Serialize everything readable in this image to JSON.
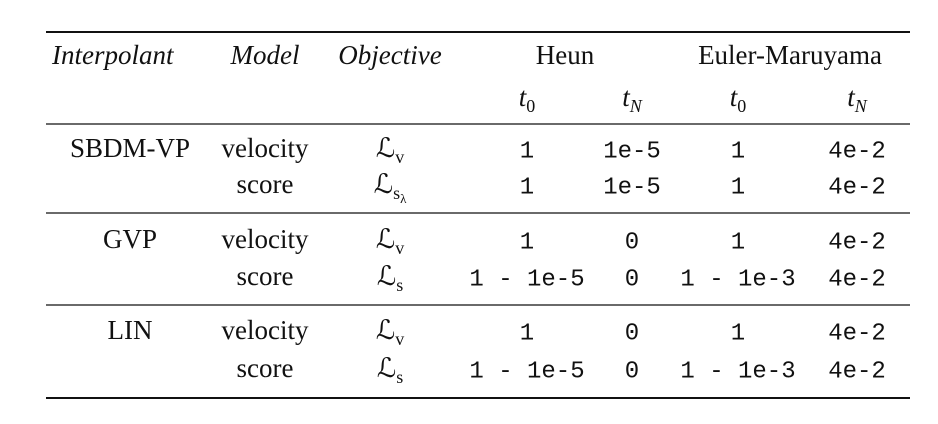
{
  "table": {
    "header": {
      "columns": [
        "Interpolant",
        "Model",
        "Objective"
      ],
      "groups": [
        {
          "name": "Heun",
          "sub": [
            {
              "main": "t",
              "sub": "0"
            },
            {
              "main": "t",
              "sub": "N"
            }
          ]
        },
        {
          "name": "Euler-Maruyama",
          "sub": [
            {
              "main": "t",
              "sub": "0"
            },
            {
              "main": "t",
              "sub": "N"
            }
          ]
        }
      ]
    },
    "sections": [
      {
        "interpolant": "SBDM-VP",
        "rows": [
          {
            "model": "velocity",
            "objective": {
              "main": "ℒ",
              "sub": "v"
            },
            "values": [
              "1",
              "1e-5",
              "1",
              "4e-2"
            ]
          },
          {
            "model": "score",
            "objective": {
              "main": "ℒ",
              "sub": "s",
              "subsub": "λ"
            },
            "values": [
              "1",
              "1e-5",
              "1",
              "4e-2"
            ]
          }
        ]
      },
      {
        "interpolant": "GVP",
        "rows": [
          {
            "model": "velocity",
            "objective": {
              "main": "ℒ",
              "sub": "v"
            },
            "values": [
              "1",
              "0",
              "1",
              "4e-2"
            ]
          },
          {
            "model": "score",
            "objective": {
              "main": "ℒ",
              "sub": "s"
            },
            "values": [
              "1 - 1e-5",
              "0",
              "1 - 1e-3",
              "4e-2"
            ]
          }
        ]
      },
      {
        "interpolant": "LIN",
        "rows": [
          {
            "model": "velocity",
            "objective": {
              "main": "ℒ",
              "sub": "v"
            },
            "values": [
              "1",
              "0",
              "1",
              "4e-2"
            ]
          },
          {
            "model": "score",
            "objective": {
              "main": "ℒ",
              "sub": "s"
            },
            "values": [
              "1 - 1e-5",
              "0",
              "1 - 1e-3",
              "4e-2"
            ]
          }
        ]
      }
    ]
  }
}
